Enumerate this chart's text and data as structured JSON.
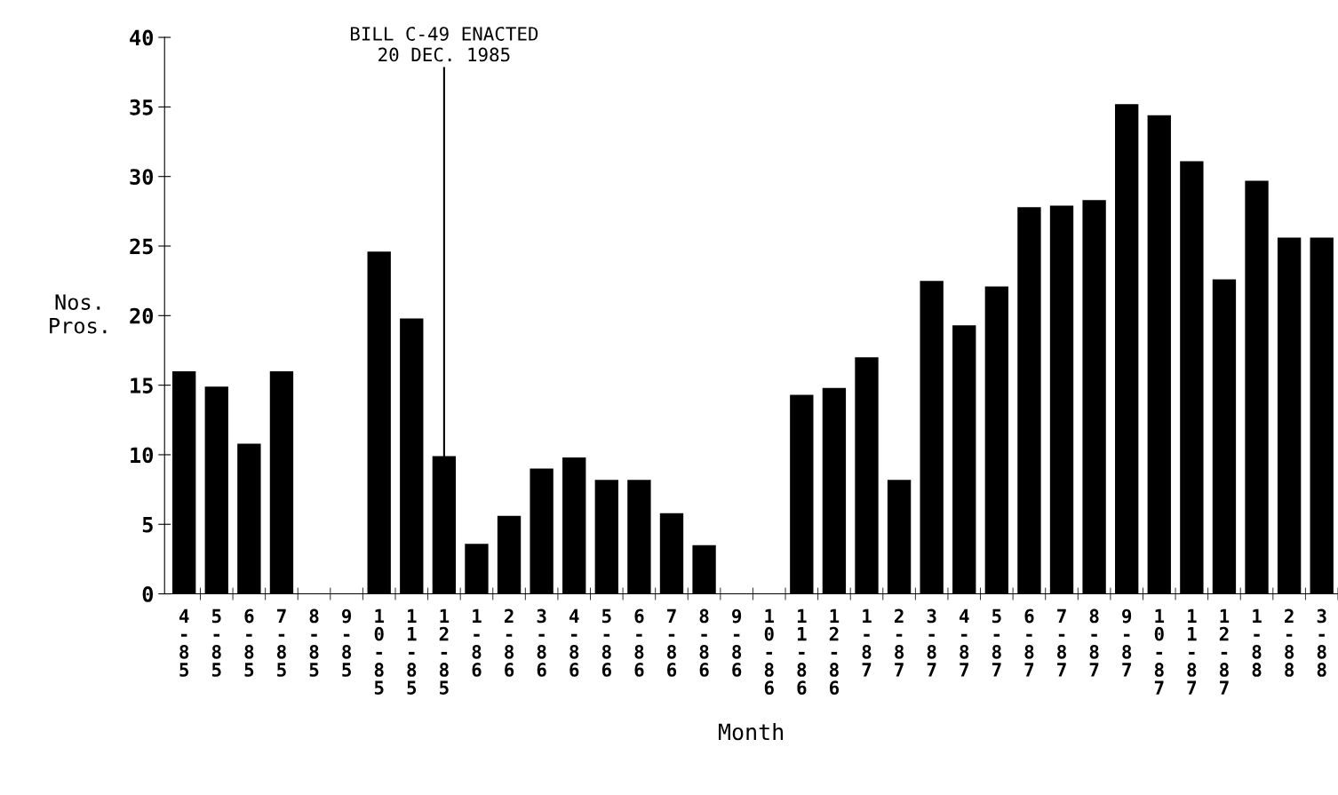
{
  "chart_data": {
    "type": "bar",
    "xlabel": "Month",
    "ylabel": "Nos.\nPros.",
    "color": "#000000",
    "categories": [
      "4-85",
      "5-85",
      "6-85",
      "7-85",
      "8-85",
      "9-85",
      "10-85",
      "11-85",
      "12-85",
      "1-86",
      "2-86",
      "3-86",
      "4-86",
      "5-86",
      "6-86",
      "7-86",
      "8-86",
      "9-86",
      "10-86",
      "11-86",
      "12-86",
      "1-87",
      "2-87",
      "3-87",
      "4-87",
      "5-87",
      "6-87",
      "7-87",
      "8-87",
      "9-87",
      "10-87",
      "11-87",
      "12-87",
      "1-88",
      "2-88",
      "3-88"
    ],
    "values": [
      16,
      14.9,
      10.8,
      16,
      0,
      0,
      24.6,
      19.8,
      9.9,
      3.6,
      5.6,
      9,
      9.8,
      8.2,
      8.2,
      5.8,
      3.5,
      0,
      0,
      14.3,
      14.8,
      17,
      8.2,
      22.5,
      19.3,
      22.1,
      27.8,
      27.9,
      28.3,
      35.2,
      34.4,
      31.1,
      22.6,
      29.7,
      25.6,
      25.6
    ],
    "ylim": [
      0,
      40
    ],
    "yticks": [
      0,
      5,
      10,
      15,
      20,
      25,
      30,
      35,
      40
    ],
    "grid": false,
    "legend": false,
    "annotations": [
      {
        "text": "BILL C-49 ENACTED\n20 DEC. 1985",
        "x": "12-85",
        "y": 9.9
      }
    ]
  }
}
